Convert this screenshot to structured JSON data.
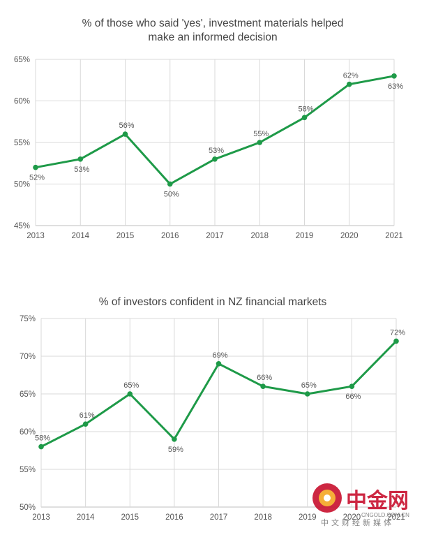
{
  "chart_data": [
    {
      "type": "line",
      "title_lines": [
        "% of those who said 'yes', investment materials helped",
        "make an informed decision"
      ],
      "categories": [
        "2013",
        "2014",
        "2015",
        "2016",
        "2017",
        "2018",
        "2019",
        "2020",
        "2021"
      ],
      "values": [
        52,
        53,
        56,
        50,
        53,
        55,
        58,
        62,
        63
      ],
      "value_labels": [
        "52%",
        "53%",
        "56%",
        "50%",
        "53%",
        "55%",
        "58%",
        "62%",
        "63%"
      ],
      "label_positions": [
        "below",
        "below",
        "above",
        "below",
        "above",
        "above",
        "above",
        "above",
        "below"
      ],
      "y_ticks": [
        "45%",
        "50%",
        "55%",
        "60%",
        "65%"
      ],
      "ylim": [
        45,
        65
      ],
      "grid": true,
      "line_color": "#1e9a48"
    },
    {
      "type": "line",
      "title_lines": [
        "% of investors confident in NZ financial markets"
      ],
      "categories": [
        "2013",
        "2014",
        "2015",
        "2016",
        "2017",
        "2018",
        "2019",
        "2020",
        "2021"
      ],
      "values": [
        58,
        61,
        65,
        59,
        69,
        66,
        65,
        66,
        72
      ],
      "value_labels": [
        "58%",
        "61%",
        "65%",
        "59%",
        "69%",
        "66%",
        "65%",
        "66%",
        "72%"
      ],
      "label_positions": [
        "above",
        "above",
        "above",
        "below",
        "above",
        "above",
        "above",
        "below",
        "above"
      ],
      "y_ticks": [
        "50%",
        "55%",
        "60%",
        "65%",
        "70%",
        "75%"
      ],
      "ylim": [
        50,
        75
      ],
      "grid": true,
      "line_color": "#1e9a48"
    }
  ],
  "watermark": {
    "brand": "中金网",
    "url": "CNGOLD.COM.CN",
    "tagline": "中文财经新媒体",
    "logo_colors": [
      "#c8102e",
      "#f5a623"
    ]
  }
}
